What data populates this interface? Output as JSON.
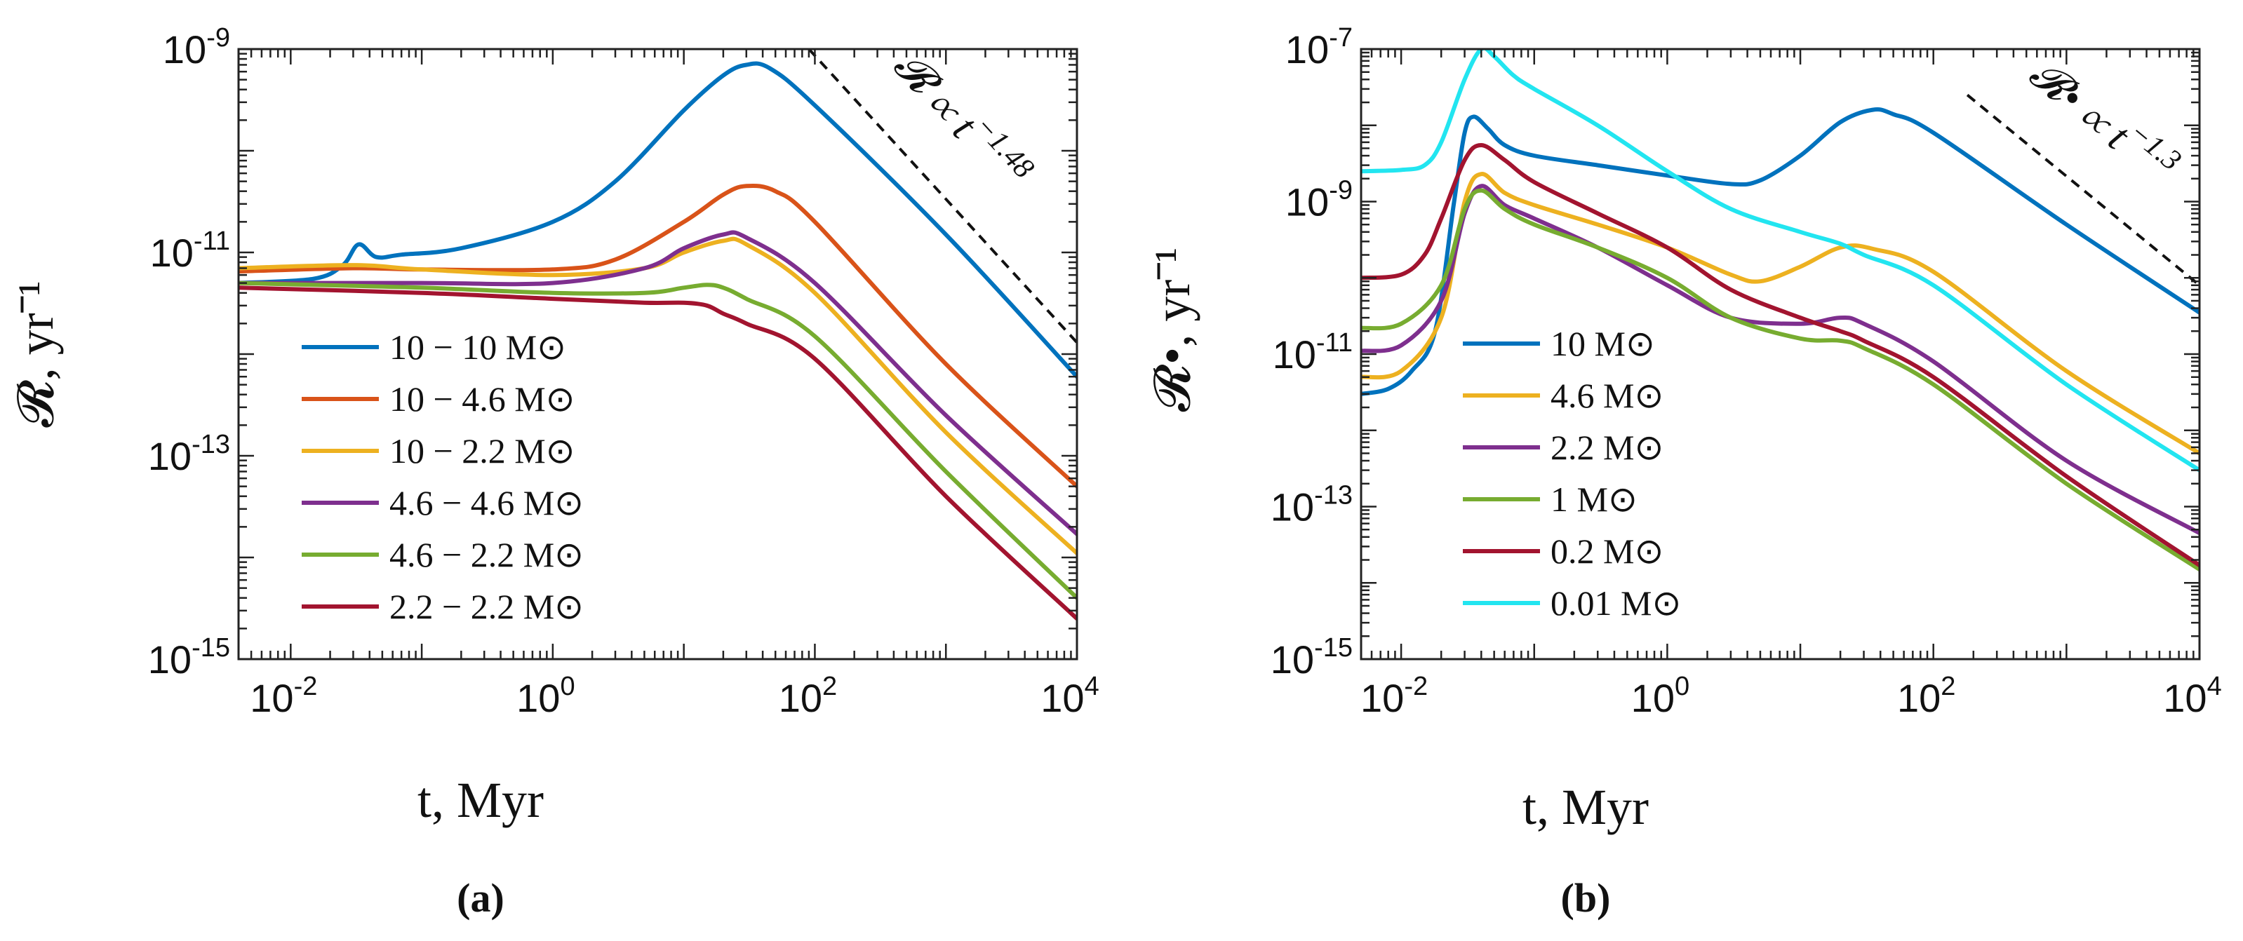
{
  "chart_data": [
    {
      "type": "line",
      "panel": "a",
      "caption": "(a)",
      "xscale": "log",
      "yscale": "log",
      "xlim": [
        0.004,
        10000
      ],
      "ylim": [
        1e-15,
        1e-09
      ],
      "xlabel": "t, Myr",
      "ylabel": "𝓡, yr⁻¹",
      "xticks": [
        {
          "v": 0.01,
          "b": "10",
          "e": "-2"
        },
        {
          "v": 1,
          "b": "10",
          "e": "0"
        },
        {
          "v": 100,
          "b": "10",
          "e": "2"
        },
        {
          "v": 10000,
          "b": "10",
          "e": "4"
        }
      ],
      "yticks": [
        {
          "v": 1e-15,
          "b": "10",
          "e": "-15"
        },
        {
          "v": 1e-13,
          "b": "10",
          "e": "-13"
        },
        {
          "v": 1e-11,
          "b": "10",
          "e": "-11"
        },
        {
          "v": 1e-09,
          "b": "10",
          "e": "-9"
        }
      ],
      "annotation": {
        "text": "𝓡 ∝ t",
        "exp": "−1.48",
        "x": [
          90,
          10000
        ],
        "y": [
          1e-09,
          1.3e-12
        ]
      },
      "legend_position": "lower-left",
      "series": [
        {
          "name": "10 − 10 M⊙",
          "color": "#0072BD",
          "x": [
            0.004,
            0.015,
            0.025,
            0.033,
            0.045,
            0.07,
            0.2,
            1,
            3,
            10,
            20,
            30,
            45,
            100,
            1000,
            10000
          ],
          "y": [
            5e-12,
            5.5e-12,
            7.5e-12,
            1.2e-11,
            9e-12,
            9.5e-12,
            1.1e-11,
            2e-11,
            5e-11,
            2.5e-10,
            5.5e-10,
            7e-10,
            6.5e-10,
            2.8e-10,
            1.5e-11,
            6e-13
          ]
        },
        {
          "name": "10 − 4.6 M⊙",
          "color": "#D95319",
          "x": [
            0.004,
            0.03,
            0.1,
            1,
            3,
            10,
            20,
            30,
            50,
            100,
            1000,
            10000
          ],
          "y": [
            6.5e-12,
            7e-12,
            6.8e-12,
            6.8e-12,
            8.5e-12,
            2e-11,
            3.7e-11,
            4.5e-11,
            4e-11,
            2e-11,
            8e-13,
            5e-14
          ]
        },
        {
          "name": "10 − 2.2 M⊙",
          "color": "#EDB120",
          "x": [
            0.004,
            0.03,
            0.1,
            1,
            5,
            10,
            20,
            30,
            100,
            1000,
            10000
          ],
          "y": [
            7e-12,
            7.5e-12,
            6.8e-12,
            6e-12,
            7e-12,
            1e-11,
            1.3e-11,
            1.2e-11,
            4e-12,
            1.7e-13,
            1.1e-14
          ]
        },
        {
          "name": "4.6 − 4.6 M⊙",
          "color": "#7E2F8E",
          "x": [
            0.004,
            0.1,
            1,
            5,
            10,
            20,
            30,
            100,
            1000,
            10000
          ],
          "y": [
            5e-12,
            5e-12,
            5e-12,
            7e-12,
            1.1e-11,
            1.5e-11,
            1.4e-11,
            5e-12,
            2.5e-13,
            1.7e-14
          ]
        },
        {
          "name": "4.6 − 2.2 M⊙",
          "color": "#77AC30",
          "x": [
            0.004,
            0.1,
            1,
            5,
            10,
            15,
            20,
            30,
            100,
            1000,
            10000
          ],
          "y": [
            5e-12,
            4.5e-12,
            4e-12,
            4e-12,
            4.5e-12,
            4.8e-12,
            4.5e-12,
            3.5e-12,
            1.5e-12,
            7e-14,
            4e-15
          ]
        },
        {
          "name": "2.2 − 2.2 M⊙",
          "color": "#A2142F",
          "x": [
            0.004,
            0.1,
            1,
            5,
            10,
            15,
            20,
            30,
            100,
            1000,
            10000
          ],
          "y": [
            4.5e-12,
            4e-12,
            3.5e-12,
            3.2e-12,
            3.2e-12,
            3e-12,
            2.5e-12,
            2e-12,
            9e-13,
            4e-14,
            2.5e-15
          ]
        }
      ]
    },
    {
      "type": "line",
      "panel": "b",
      "caption": "(b)",
      "xscale": "log",
      "yscale": "log",
      "xlim": [
        0.005,
        10000
      ],
      "ylim": [
        1e-15,
        1e-07
      ],
      "xlabel": "t, Myr",
      "ylabel": "𝓡•, yr⁻¹",
      "xticks": [
        {
          "v": 0.01,
          "b": "10",
          "e": "-2"
        },
        {
          "v": 1,
          "b": "10",
          "e": "0"
        },
        {
          "v": 100,
          "b": "10",
          "e": "2"
        },
        {
          "v": 10000,
          "b": "10",
          "e": "4"
        }
      ],
      "yticks": [
        {
          "v": 1e-15,
          "b": "10",
          "e": "-15"
        },
        {
          "v": 1e-13,
          "b": "10",
          "e": "-13"
        },
        {
          "v": 1e-11,
          "b": "10",
          "e": "-11"
        },
        {
          "v": 1e-09,
          "b": "10",
          "e": "-9"
        },
        {
          "v": 1e-07,
          "b": "10",
          "e": "-7"
        }
      ],
      "annotation": {
        "text": "𝓡• ∝ t",
        "exp": "−1.3",
        "x": [
          180,
          10000
        ],
        "y": [
          2.5e-08,
          8e-11
        ]
      },
      "legend_position": "lower-left",
      "series": [
        {
          "name": "10 M⊙",
          "color": "#0072BD",
          "x": [
            0.005,
            0.008,
            0.012,
            0.018,
            0.025,
            0.03,
            0.035,
            0.045,
            0.06,
            0.1,
            0.3,
            1,
            3,
            5,
            10,
            20,
            35,
            50,
            100,
            1000,
            10000
          ],
          "y": [
            3e-12,
            3.5e-12,
            6e-12,
            2e-11,
            1e-09,
            8e-09,
            1.3e-08,
            9e-09,
            5.5e-09,
            4e-09,
            3e-09,
            2.2e-09,
            1.7e-09,
            1.9e-09,
            4e-09,
            1.1e-08,
            1.6e-08,
            1.4e-08,
            8e-09,
            5e-10,
            3.5e-11
          ]
        },
        {
          "name": "4.6 M⊙",
          "color": "#EDB120",
          "x": [
            0.005,
            0.01,
            0.02,
            0.03,
            0.04,
            0.06,
            0.1,
            0.3,
            1,
            3,
            5,
            10,
            20,
            35,
            100,
            1000,
            10000
          ],
          "y": [
            5e-12,
            6e-12,
            3e-11,
            1e-09,
            2.3e-09,
            1.3e-09,
            9e-10,
            5e-10,
            2.5e-10,
            1.1e-10,
            9e-11,
            1.4e-10,
            2.5e-10,
            2.4e-10,
            1.2e-10,
            6e-12,
            5e-13
          ]
        },
        {
          "name": "2.2 M⊙",
          "color": "#7E2F8E",
          "x": [
            0.005,
            0.01,
            0.02,
            0.03,
            0.04,
            0.06,
            0.1,
            0.3,
            1,
            3,
            10,
            20,
            30,
            100,
            1000,
            10000
          ],
          "y": [
            1.1e-11,
            1.3e-11,
            5e-11,
            7e-10,
            1.6e-09,
            9e-10,
            6e-10,
            2.5e-10,
            8e-11,
            3e-11,
            2.5e-11,
            3e-11,
            2.5e-11,
            8e-12,
            4e-13,
            4.5e-14
          ]
        },
        {
          "name": "1 M⊙",
          "color": "#77AC30",
          "x": [
            0.005,
            0.01,
            0.02,
            0.03,
            0.04,
            0.06,
            0.1,
            0.3,
            1,
            3,
            10,
            20,
            30,
            100,
            1000,
            10000
          ],
          "y": [
            2.2e-11,
            2.5e-11,
            8e-11,
            8e-10,
            1.4e-09,
            8e-10,
            5e-10,
            2.5e-10,
            1e-10,
            3e-11,
            1.6e-11,
            1.5e-11,
            1.2e-11,
            4e-12,
            2e-13,
            1.5e-14
          ]
        },
        {
          "name": "0.2 M⊙",
          "color": "#A2142F",
          "x": [
            0.005,
            0.01,
            0.015,
            0.02,
            0.03,
            0.04,
            0.06,
            0.1,
            0.3,
            1,
            3,
            10,
            20,
            30,
            100,
            1000,
            10000
          ],
          "y": [
            1e-10,
            1.1e-10,
            2e-10,
            6e-10,
            3.5e-09,
            5.5e-09,
            3.5e-09,
            1.8e-09,
            7e-10,
            2.5e-10,
            7e-11,
            3e-11,
            2e-11,
            1.5e-11,
            5e-12,
            2.5e-13,
            1.7e-14
          ]
        },
        {
          "name": "0.01 M⊙",
          "color": "#22E5F0",
          "x": [
            0.005,
            0.01,
            0.015,
            0.02,
            0.03,
            0.04,
            0.05,
            0.07,
            0.1,
            0.3,
            1,
            3,
            10,
            20,
            30,
            100,
            1000,
            10000
          ],
          "y": [
            2.5e-09,
            2.6e-09,
            3e-09,
            6e-09,
            4e-08,
            1e-07,
            8e-08,
            4.5e-08,
            3e-08,
            1e-08,
            2.5e-09,
            8e-10,
            4e-10,
            2.8e-10,
            2e-10,
            8e-11,
            4e-12,
            3e-13
          ]
        }
      ]
    }
  ]
}
